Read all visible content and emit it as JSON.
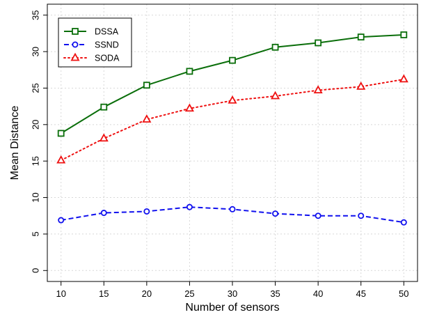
{
  "chart_data": {
    "type": "line",
    "title": "",
    "xlabel": "Number of sensors",
    "ylabel": "Mean Distance",
    "x": [
      10,
      15,
      20,
      25,
      30,
      35,
      40,
      45,
      50
    ],
    "xlim": [
      8.4,
      51.6
    ],
    "ylim": [
      -1.5,
      36.5
    ],
    "xticks": [
      "10",
      "15",
      "20",
      "25",
      "30",
      "35",
      "40",
      "45",
      "50"
    ],
    "yticks": [
      "0",
      "5",
      "10",
      "15",
      "20",
      "25",
      "30",
      "35"
    ],
    "grid": true,
    "legend_position": "top-left",
    "series": [
      {
        "name": "DSSA",
        "color": "#0a6e0a",
        "marker": "square",
        "line_style": "solid",
        "values": [
          18.8,
          22.4,
          25.4,
          27.3,
          28.8,
          30.6,
          31.2,
          32.0,
          32.3
        ]
      },
      {
        "name": "SSND",
        "color": "#1010ee",
        "marker": "circle",
        "line_style": "dashed",
        "values": [
          6.9,
          7.9,
          8.1,
          8.7,
          8.4,
          7.8,
          7.5,
          7.5,
          6.6
        ]
      },
      {
        "name": "SODA",
        "color": "#ee1010",
        "marker": "triangle",
        "line_style": "dotted",
        "values": [
          15.1,
          18.1,
          20.7,
          22.2,
          23.3,
          23.9,
          24.7,
          25.2,
          26.2
        ]
      }
    ]
  }
}
